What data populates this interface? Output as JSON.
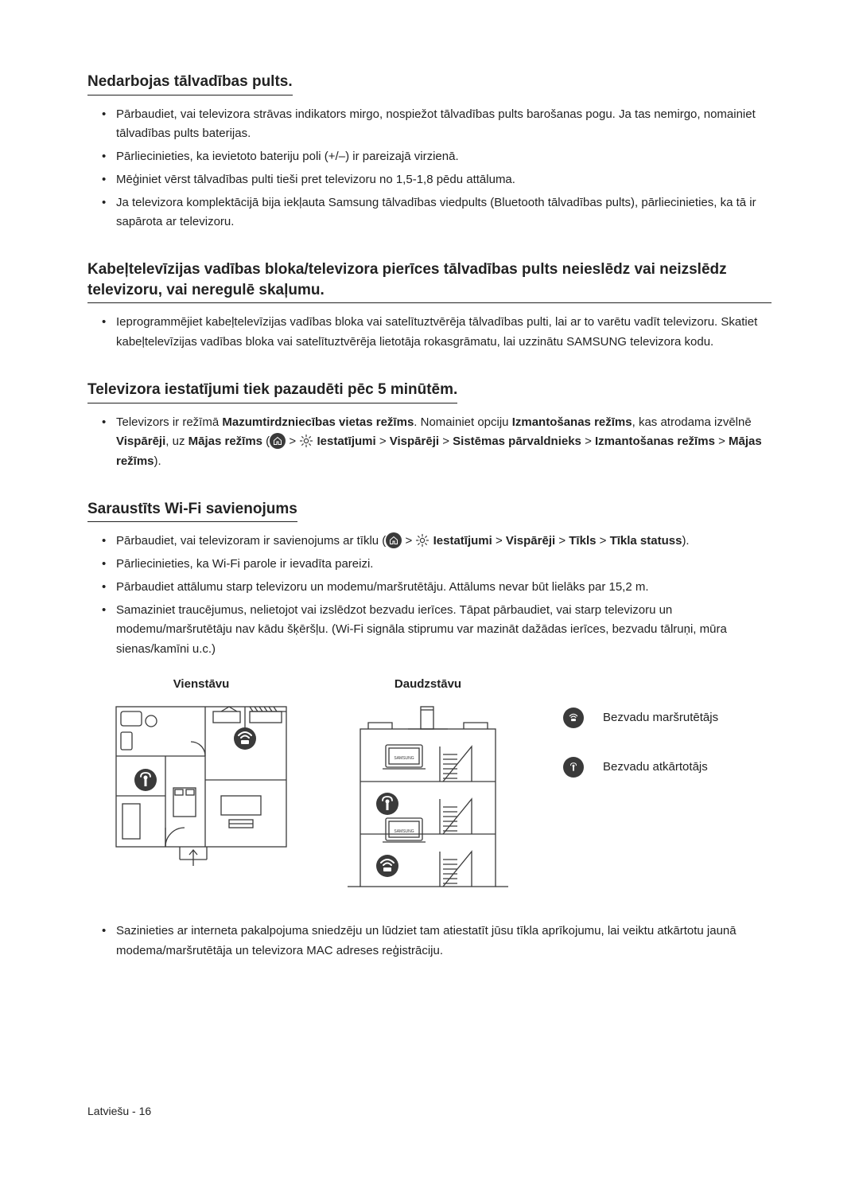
{
  "sections": [
    {
      "heading": "Nedarbojas tālvadības pults.",
      "bullets": [
        [
          {
            "t": "Pārbaudiet, vai televizora strāvas indikators mirgo, nospiežot tālvadības pults barošanas pogu. Ja tas nemirgo, nomainiet tālvadības pults baterijas."
          }
        ],
        [
          {
            "t": "Pārliecinieties, ka ievietoto bateriju poli (+/–) ir pareizajā virzienā."
          }
        ],
        [
          {
            "t": "Mēģiniet vērst tālvadības pulti tieši pret televizoru no 1,5-1,8 pēdu attāluma."
          }
        ],
        [
          {
            "t": "Ja televizora komplektācijā bija iekļauta Samsung tālvadības viedpults (Bluetooth tālvadības pults), pārliecinieties, ka tā ir sapārota ar televizoru."
          }
        ]
      ]
    },
    {
      "heading": "Kabeļtelevīzijas vadības bloka/televizora pierīces tālvadības pults neieslēdz vai neizslēdz televizoru, vai neregulē skaļumu.",
      "bullets": [
        [
          {
            "t": "Ieprogrammējiet kabeļtelevīzijas vadības bloka vai satelītuztvērēja tālvadības pulti, lai ar to varētu vadīt televizoru. Skatiet kabeļtelevīzijas vadības bloka vai satelītuztvērēja lietotāja rokasgrāmatu, lai uzzinātu SAMSUNG televizora kodu."
          }
        ]
      ]
    },
    {
      "heading": "Televizora iestatījumi tiek pazaudēti pēc 5 minūtēm.",
      "bullets": [
        [
          {
            "t": "Televizors ir režīmā "
          },
          {
            "t": "Mazumtirdzniecības vietas režīms",
            "b": true
          },
          {
            "t": ". Nomainiet opciju "
          },
          {
            "t": "Izmantošanas režīms",
            "b": true
          },
          {
            "t": ", kas atrodama izvēlnē "
          },
          {
            "t": "Vispārēji",
            "b": true
          },
          {
            "t": ", uz "
          },
          {
            "t": "Mājas režīms",
            "b": true
          },
          {
            "t": " ("
          },
          {
            "icon": "home"
          },
          {
            "t": " > "
          },
          {
            "icon": "gear"
          },
          {
            "t": " "
          },
          {
            "t": "Iestatījumi",
            "b": true
          },
          {
            "t": " > "
          },
          {
            "t": "Vispārēji",
            "b": true
          },
          {
            "t": " > "
          },
          {
            "t": "Sistēmas pārvaldnieks",
            "b": true
          },
          {
            "t": " > "
          },
          {
            "t": "Izmantošanas režīms",
            "b": true
          },
          {
            "t": " > "
          },
          {
            "t": "Mājas režīms",
            "b": true
          },
          {
            "t": ")."
          }
        ]
      ]
    },
    {
      "heading": "Saraustīts Wi-Fi savienojums",
      "bullets": [
        [
          {
            "t": "Pārbaudiet, vai televizoram ir savienojums ar tīklu ("
          },
          {
            "icon": "home"
          },
          {
            "t": " > "
          },
          {
            "icon": "gear"
          },
          {
            "t": " "
          },
          {
            "t": "Iestatījumi",
            "b": true
          },
          {
            "t": " > "
          },
          {
            "t": "Vispārēji",
            "b": true
          },
          {
            "t": " > "
          },
          {
            "t": "Tīkls",
            "b": true
          },
          {
            "t": " > "
          },
          {
            "t": "Tīkla statuss",
            "b": true
          },
          {
            "t": ")."
          }
        ],
        [
          {
            "t": "Pārliecinieties, ka Wi-Fi parole ir ievadīta pareizi."
          }
        ],
        [
          {
            "t": "Pārbaudiet attālumu starp televizoru un modemu/maršrutētāju. Attālums nevar būt lielāks par 15,2 m."
          }
        ],
        [
          {
            "t": "Samaziniet traucējumus, nelietojot vai izslēdzot bezvadu ierīces. Tāpat pārbaudiet, vai starp televizoru un modemu/maršrutētāju nav kādu šķēršļu. (Wi-Fi signāla stiprumu var mazināt dažādas ierīces, bezvadu tālruņi, mūra sienas/kamīni u.c.)"
          }
        ]
      ],
      "diagram": true,
      "bullets_after": [
        [
          {
            "t": "Sazinieties ar interneta pakalpojuma sniedzēju un lūdziet tam atiestatīt jūsu tīkla aprīkojumu, lai veiktu atkārtotu jaunā modema/maršrutētāja un televizora MAC adreses reģistrāciju."
          }
        ]
      ]
    }
  ],
  "diagram": {
    "single_label": "Vienstāvu",
    "multi_label": "Daudzstāvu",
    "legend": [
      {
        "icon": "router",
        "label": "Bezvadu maršrutētājs"
      },
      {
        "icon": "repeater",
        "label": "Bezvadu atkārtotājs"
      }
    ],
    "colors": {
      "stroke": "#3a3a3a",
      "icon_bg": "#3a3a3a",
      "icon_fg": "#ffffff"
    }
  },
  "footer": "Latviešu - 16"
}
